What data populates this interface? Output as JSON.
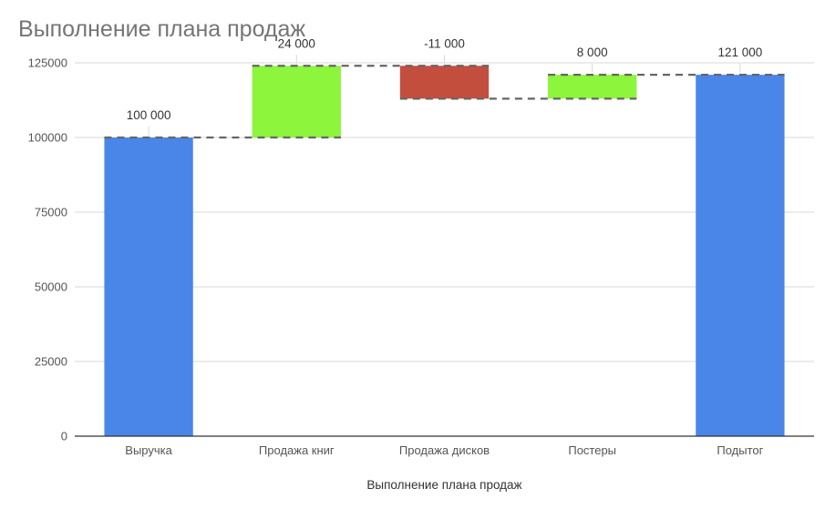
{
  "chart_data": {
    "type": "bar",
    "subtype": "waterfall",
    "title": "Выполнение плана продаж",
    "xlabel": "Выполнение плана продаж",
    "ylabel": "",
    "ylim": [
      0,
      137500
    ],
    "yticks": [
      0,
      25000,
      50000,
      75000,
      100000,
      125000
    ],
    "ytick_labels": [
      "0",
      "25000",
      "50000",
      "75000",
      "100000",
      "125000"
    ],
    "grid": true,
    "legend": "none",
    "categories": [
      "Выручка",
      "Продажа книг",
      "Продажа дисков",
      "Постеры",
      "Подытог"
    ],
    "values": [
      100000,
      24000,
      -11000,
      8000,
      121000
    ],
    "kinds": [
      "total",
      "increase",
      "decrease",
      "increase",
      "total"
    ],
    "data_labels": [
      "100 000",
      "24 000",
      "-11 000",
      "8 000",
      "121 000"
    ],
    "colors": {
      "total": "#4a86e8",
      "increase": "#8cf53c",
      "decrease": "#c44e3e",
      "connector": "#666666",
      "grid": "#d9d9d9",
      "axis": "#333333"
    }
  }
}
